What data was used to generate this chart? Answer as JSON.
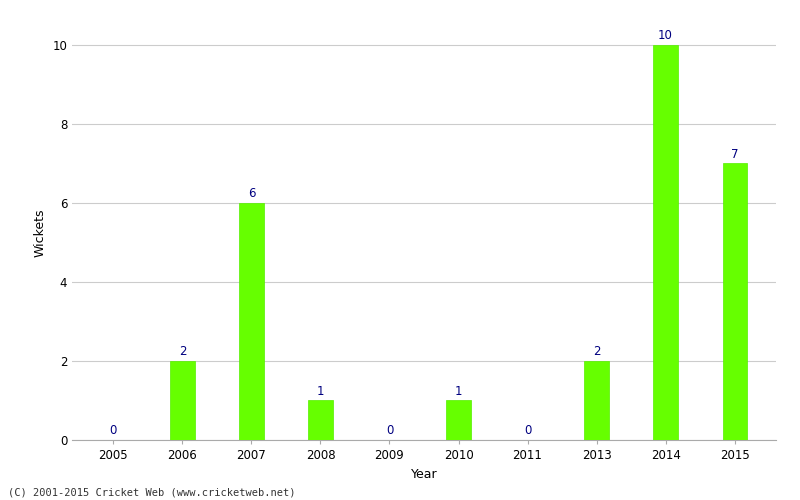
{
  "years": [
    "2005",
    "2006",
    "2007",
    "2008",
    "2009",
    "2010",
    "2011",
    "2013",
    "2014",
    "2015"
  ],
  "values": [
    0,
    2,
    6,
    1,
    0,
    1,
    0,
    2,
    10,
    7
  ],
  "bar_color": "#66ff00",
  "bar_edge_color": "#55ee00",
  "label_color": "#000080",
  "xlabel": "Year",
  "ylabel": "Wickets",
  "ylim": [
    0,
    10.5
  ],
  "yticks": [
    0,
    2,
    4,
    6,
    8,
    10
  ],
  "footnote": "(C) 2001-2015 Cricket Web (www.cricketweb.net)",
  "background_color": "#ffffff",
  "grid_color": "#cccccc",
  "label_fontsize": 8.5,
  "axis_label_fontsize": 9,
  "tick_fontsize": 8.5,
  "bar_width": 0.35
}
